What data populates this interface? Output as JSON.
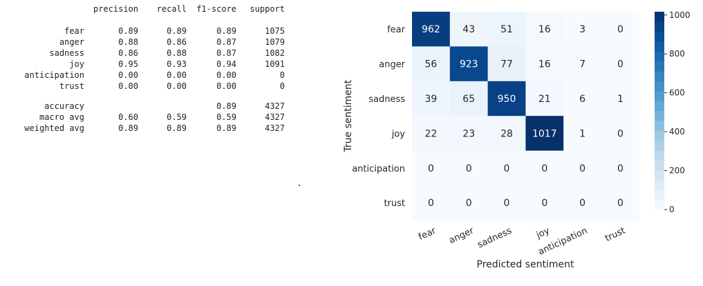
{
  "report": {
    "columns": [
      "precision",
      "recall",
      "f1-score",
      "support"
    ],
    "rows": [
      {
        "label": "fear",
        "precision": "0.89",
        "recall": "0.89",
        "f1": "0.89",
        "support": "1075"
      },
      {
        "label": "anger",
        "precision": "0.88",
        "recall": "0.86",
        "f1": "0.87",
        "support": "1079"
      },
      {
        "label": "sadness",
        "precision": "0.86",
        "recall": "0.88",
        "f1": "0.87",
        "support": "1082"
      },
      {
        "label": "joy",
        "precision": "0.95",
        "recall": "0.93",
        "f1": "0.94",
        "support": "1091"
      },
      {
        "label": "anticipation",
        "precision": "0.00",
        "recall": "0.00",
        "f1": "0.00",
        "support": "0"
      },
      {
        "label": "trust",
        "precision": "0.00",
        "recall": "0.00",
        "f1": "0.00",
        "support": "0"
      }
    ],
    "summary": [
      {
        "label": "accuracy",
        "precision": "",
        "recall": "",
        "f1": "0.89",
        "support": "4327"
      },
      {
        "label": "macro avg",
        "precision": "0.60",
        "recall": "0.59",
        "f1": "0.59",
        "support": "4327"
      },
      {
        "label": "weighted avg",
        "precision": "0.89",
        "recall": "0.89",
        "f1": "0.89",
        "support": "4327"
      }
    ]
  },
  "chart_data": {
    "type": "heatmap",
    "categories": [
      "fear",
      "anger",
      "sadness",
      "joy",
      "anticipation",
      "trust"
    ],
    "matrix": [
      [
        962,
        43,
        51,
        16,
        3,
        0
      ],
      [
        56,
        923,
        77,
        16,
        7,
        0
      ],
      [
        39,
        65,
        950,
        21,
        6,
        1
      ],
      [
        22,
        23,
        28,
        1017,
        1,
        0
      ],
      [
        0,
        0,
        0,
        0,
        0,
        0
      ],
      [
        0,
        0,
        0,
        0,
        0,
        0
      ]
    ],
    "xlabel": "Predicted sentiment",
    "ylabel": "True sentiment",
    "colormap": "Blues",
    "colorbar": {
      "range": [
        0,
        1017
      ],
      "ticks": [
        0,
        200,
        400,
        600,
        800,
        1000
      ]
    },
    "colors": {
      "low": "#f7fbff",
      "high": "#08306b"
    }
  }
}
